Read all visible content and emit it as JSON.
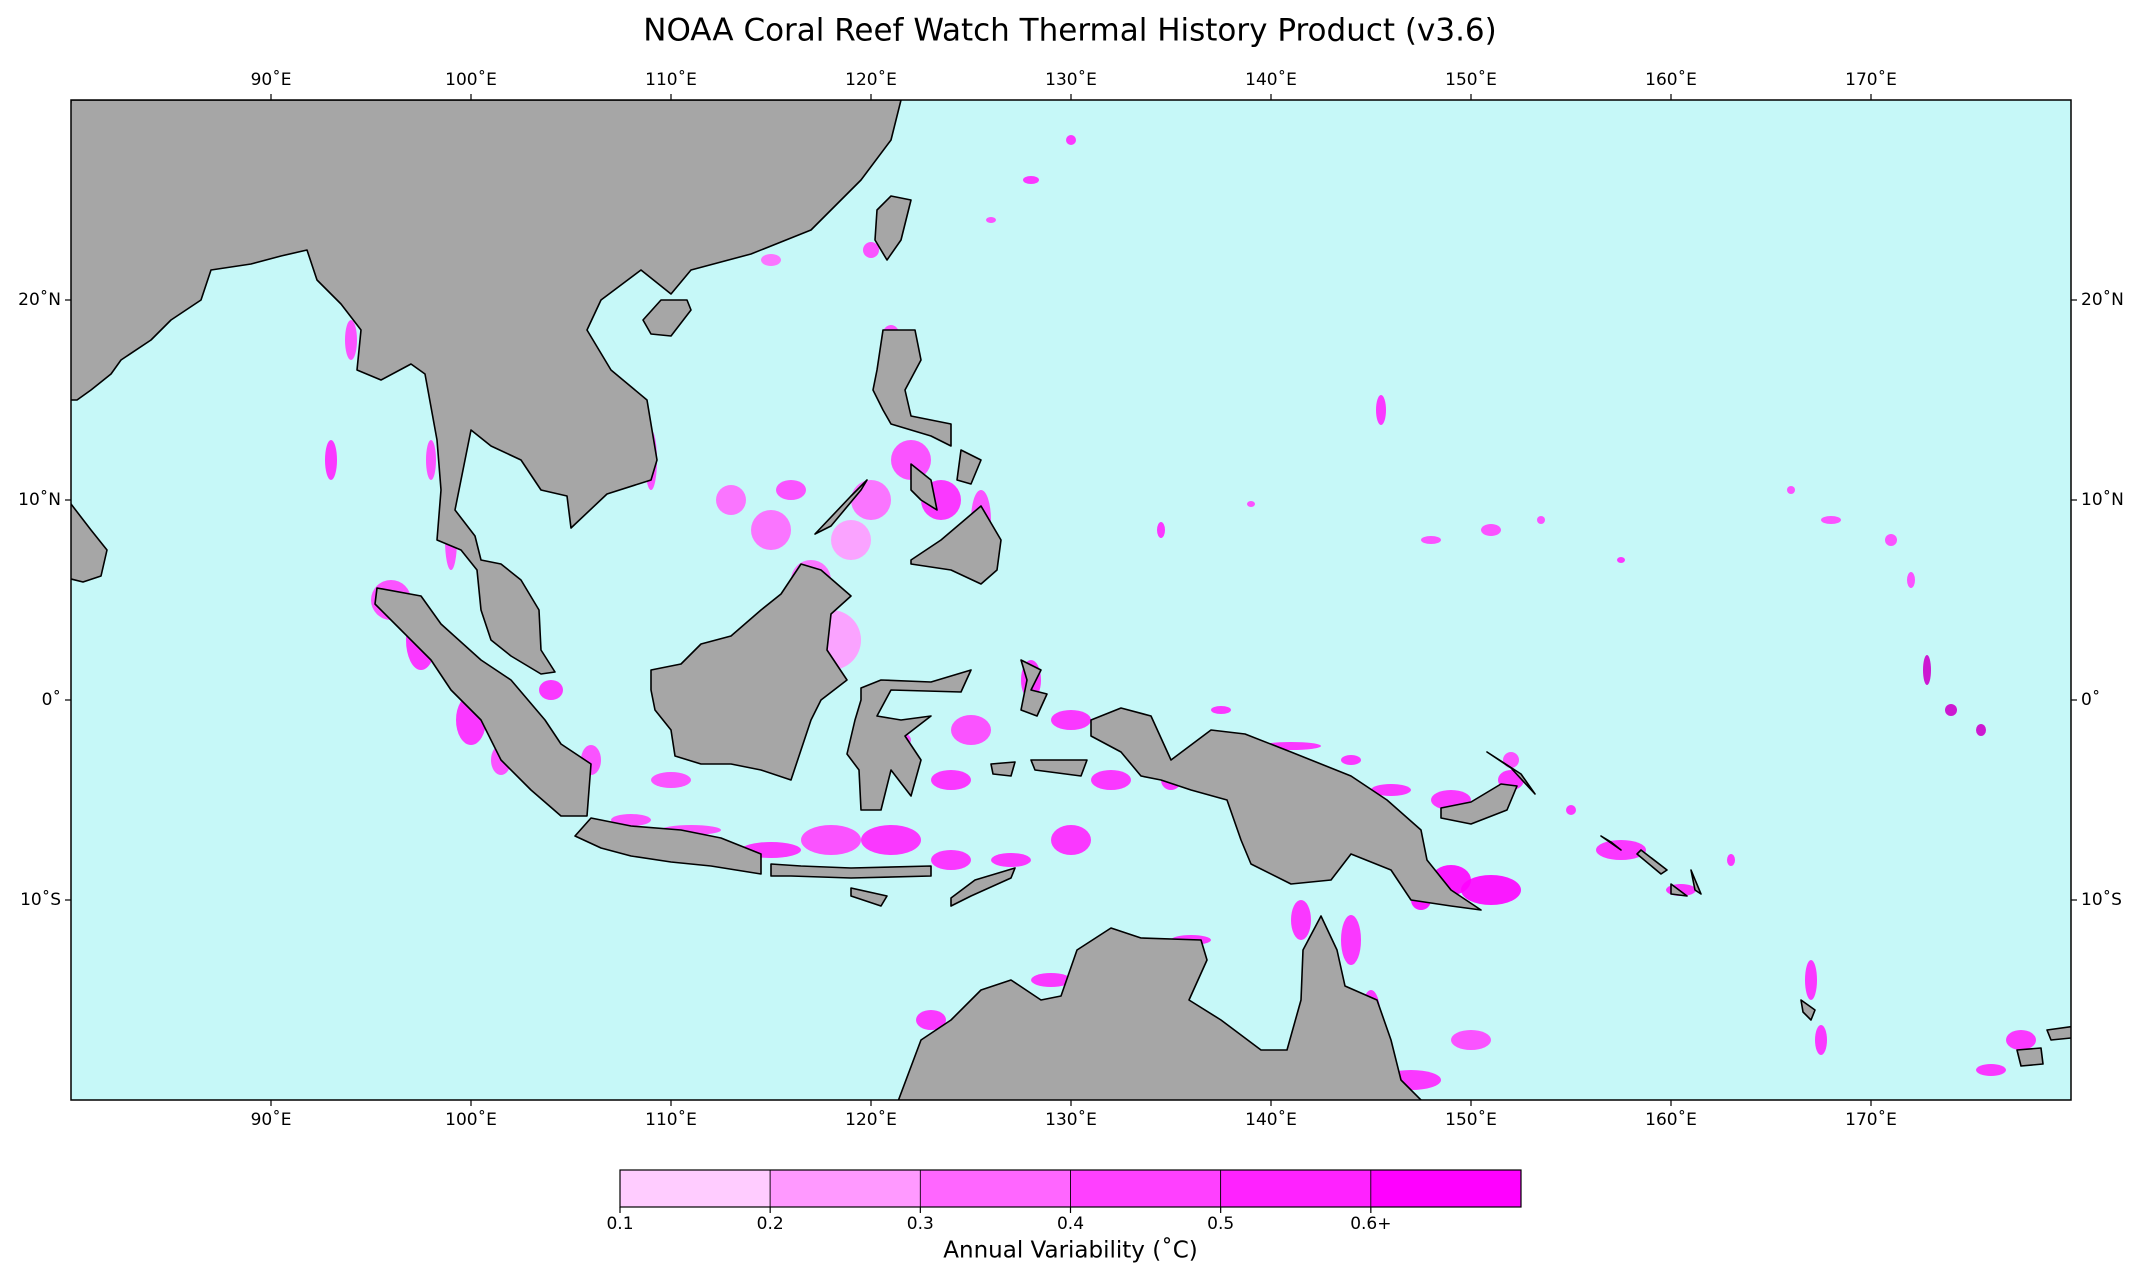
{
  "map": {
    "title": "NOAA Coral Reef Watch Thermal History Product (v3.6)",
    "xlim": [
      80,
      180
    ],
    "ylim": [
      -20,
      30
    ],
    "xticks": [
      {
        "value": 90,
        "label": "90˚E"
      },
      {
        "value": 100,
        "label": "100˚E"
      },
      {
        "value": 110,
        "label": "110˚E"
      },
      {
        "value": 120,
        "label": "120˚E"
      },
      {
        "value": 130,
        "label": "130˚E"
      },
      {
        "value": 140,
        "label": "140˚E"
      },
      {
        "value": 150,
        "label": "150˚E"
      },
      {
        "value": 160,
        "label": "160˚E"
      },
      {
        "value": 170,
        "label": "170˚E"
      }
    ],
    "yticks": [
      {
        "value": 20,
        "label": "20˚N"
      },
      {
        "value": 10,
        "label": "10˚N"
      },
      {
        "value": 0,
        "label": "0˚"
      },
      {
        "value": -10,
        "label": "10˚S"
      }
    ],
    "ocean_color": "#c6f8f8",
    "land_color": "#a6a6a6",
    "colorbar": {
      "label": "Annual Variability (˚C)",
      "lim": [
        0.1,
        0.7
      ],
      "bounds": [
        0.1,
        0.2,
        0.3,
        0.4,
        0.5,
        0.6,
        0.7
      ],
      "colors": [
        "#ffccff",
        "#ff99ff",
        "#ff66ff",
        "#ff40ff",
        "#ff22ff",
        "#ff00ff",
        "#cc00cc"
      ],
      "ticks": [
        0.1,
        0.2,
        0.3,
        0.4,
        0.5,
        {
          "value": 0.6,
          "label": "0.6+"
        }
      ]
    }
  }
}
